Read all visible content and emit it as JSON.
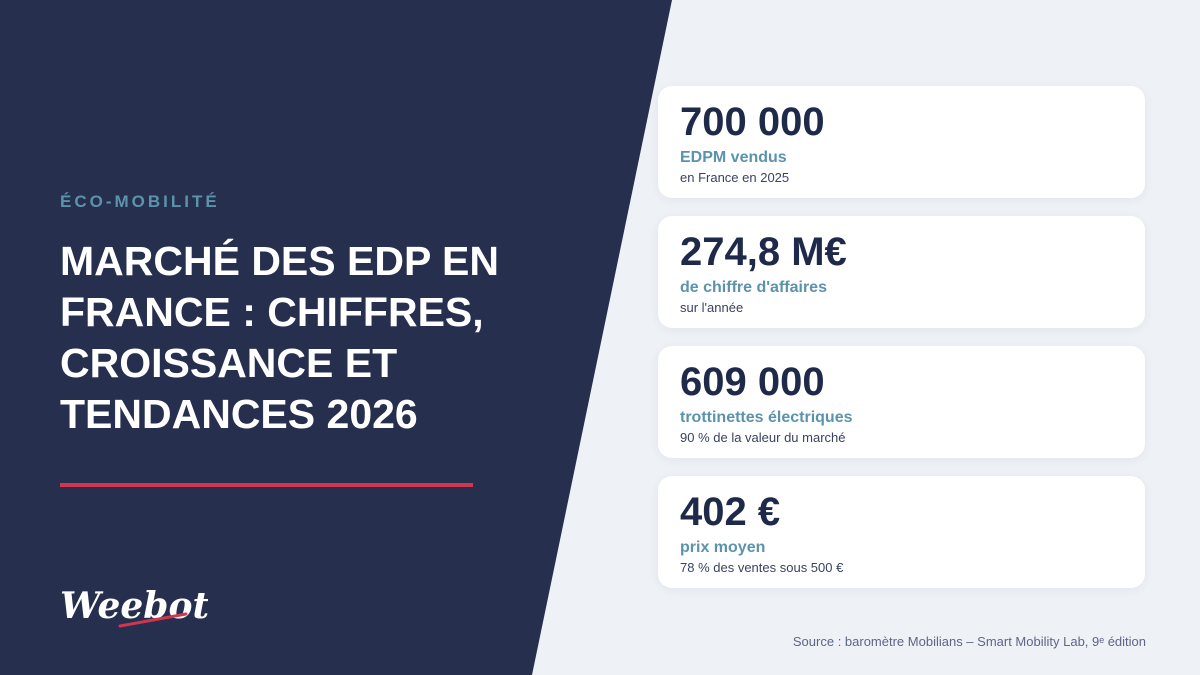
{
  "category": "ÉCO-MOBILITÉ",
  "title": "MARCHÉ DES EDP EN FRANCE : CHIFFRES, CROISSANCE ET TENDANCES 2026",
  "logo_text": "Weebot",
  "colors": {
    "dark_panel": "#272f4e",
    "accent_red": "#d0364e",
    "accent_blue": "#5b93ac",
    "background_light": "#eef1f6"
  },
  "stats": [
    {
      "value": "700 000",
      "label": "EDPM vendus",
      "sub": "en France en 2025"
    },
    {
      "value": "274,8 M€",
      "label": "de chiffre d'affaires",
      "sub": "sur l'année"
    },
    {
      "value": "609 000",
      "label": "trottinettes électriques",
      "sub": "90 % de la valeur du marché"
    },
    {
      "value": "402 €",
      "label": "prix moyen",
      "sub": "78 % des ventes sous 500 €"
    }
  ],
  "source": "Source : baromètre Mobilians – Smart Mobility Lab, 9ᵉ édition"
}
